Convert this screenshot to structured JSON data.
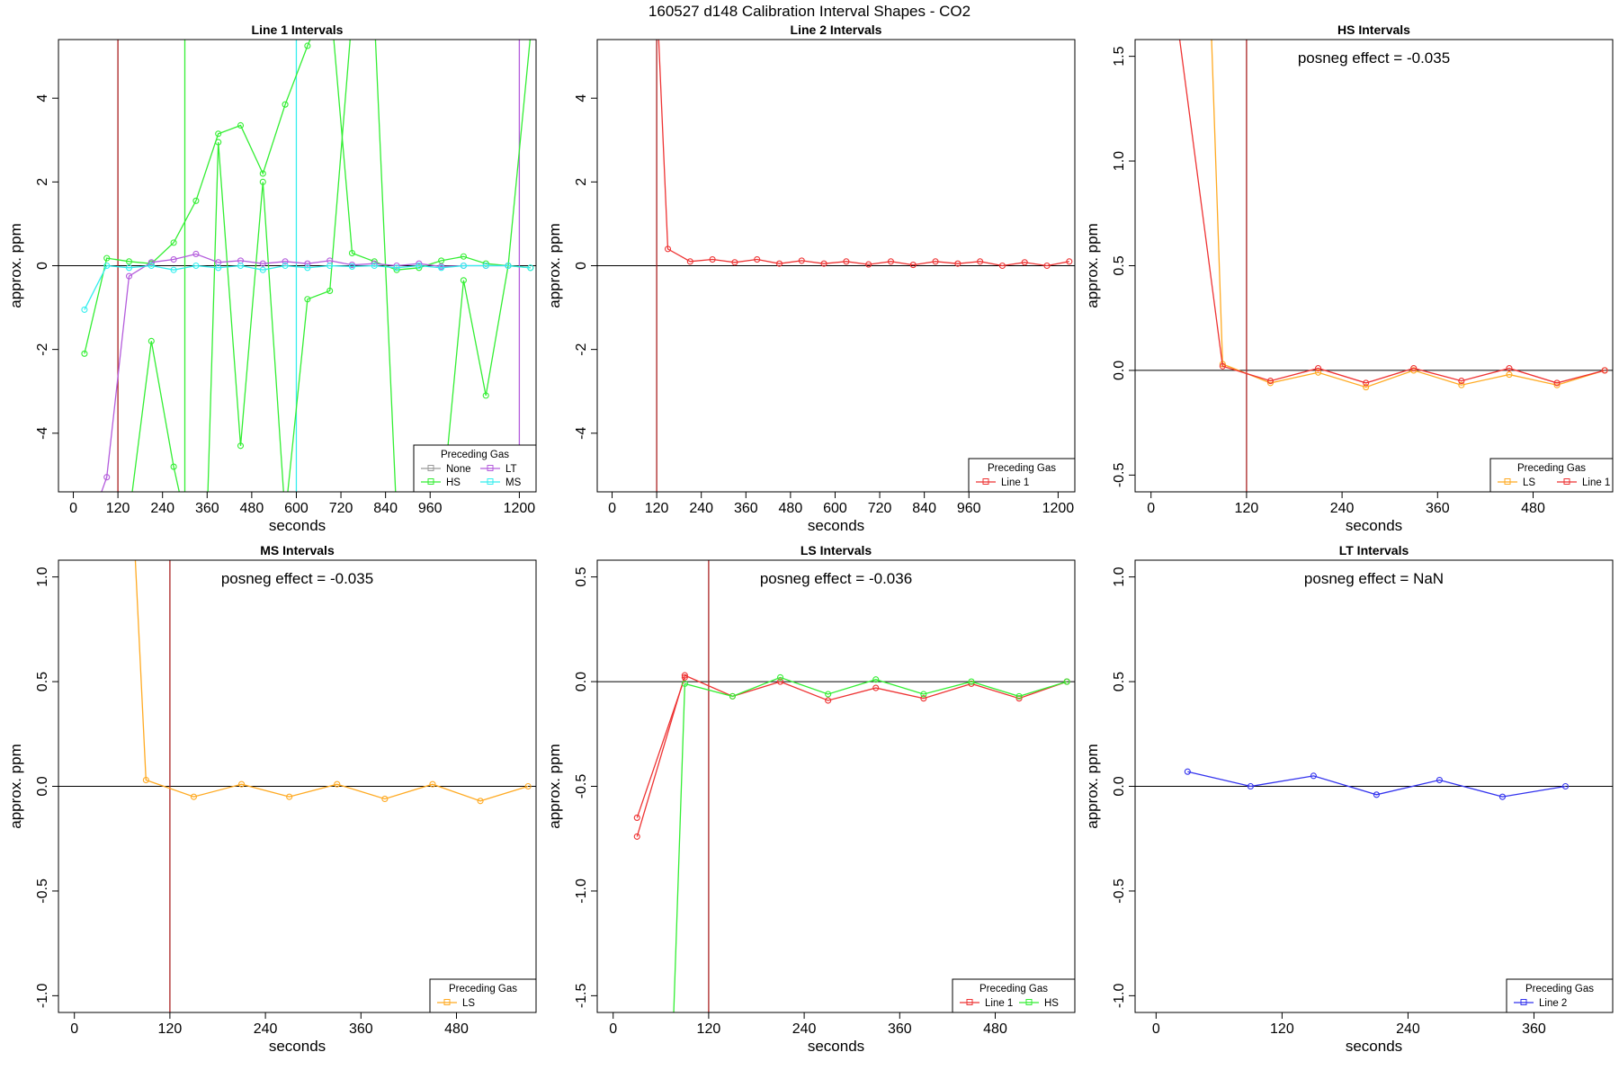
{
  "page": {
    "title": "160527  d148   Calibration Interval Shapes - CO2"
  },
  "colors": {
    "None": "#999999",
    "HS": "#33ee33",
    "LT": "#b45cdc",
    "MS": "#33eeee",
    "Line 1": "#ee3333",
    "Line 2": "#3333ee",
    "LS": "#ffaa22",
    "vline_dark": "#aa2222"
  },
  "chart_data": [
    {
      "type": "line",
      "title": "Line 1 Intervals",
      "xlabel": "seconds",
      "ylabel": "approx. ppm",
      "xlim": [
        -40,
        1245
      ],
      "ylim": [
        -5.4,
        5.4
      ],
      "xticks": [
        0,
        120,
        240,
        360,
        480,
        600,
        720,
        840,
        960,
        1200
      ],
      "yticks": [
        -4,
        -2,
        0,
        2,
        4
      ],
      "annotation": "",
      "legend": {
        "title": "Preceding Gas",
        "ncol": 2,
        "entries": [
          "None",
          "LT",
          "HS",
          "MS"
        ]
      },
      "vlines": [
        {
          "x": 120,
          "color": "#aa2222"
        },
        {
          "x": 300,
          "color": "#33ee33"
        },
        {
          "x": 600,
          "color": "#33eeee"
        },
        {
          "x": 1200,
          "color": "#b45cdc"
        }
      ],
      "series": [
        {
          "name": "HS",
          "color": "#33ee33",
          "lines": [
            {
              "x": [
                30,
                90,
                150,
                210,
                270,
                330,
                390,
                450,
                510,
                570,
                630,
                690,
                750,
                810,
                870,
                930,
                990,
                1050,
                1110,
                1170,
                1230
              ],
              "y": [
                -2.1,
                0.18,
                0.1,
                0.05,
                0.55,
                1.55,
                3.15,
                3.35,
                2.2,
                3.85,
                5.25,
                6.5,
                0.3,
                0.1,
                -0.1,
                -0.05,
                0.12,
                0.22,
                0.05,
                0.0,
                5.5
              ]
            },
            {
              "x": [
                120,
                150,
                210,
                270,
                300
              ],
              "y": [
                -6,
                -6,
                -1.8,
                -4.8,
                -6
              ]
            },
            {
              "x": [
                360,
                390,
                450,
                510,
                570,
                630,
                690,
                750
              ],
              "y": [
                -6,
                2.95,
                -4.3,
                2.0,
                -6,
                -0.8,
                -0.6,
                6
              ]
            },
            {
              "x": [
                810,
                870,
                990,
                1050,
                1110,
                1170,
                1230
              ],
              "y": [
                6,
                -6,
                -6,
                -0.35,
                -3.1,
                0.0,
                -0.05
              ]
            }
          ]
        },
        {
          "name": "LT",
          "color": "#b45cdc",
          "lines": [
            {
              "x": [
                60,
                90,
                150,
                210,
                270,
                330,
                390,
                450,
                510,
                570,
                630,
                690,
                750,
                810,
                870,
                930,
                990,
                1050,
                1110,
                1170
              ],
              "y": [
                -5.8,
                -5.05,
                -0.25,
                0.08,
                0.15,
                0.28,
                0.08,
                0.12,
                0.05,
                0.1,
                0.05,
                0.12,
                0.02,
                0.05,
                0.0,
                0.05,
                -0.02,
                0.0,
                0.0,
                0.0
              ]
            }
          ]
        },
        {
          "name": "MS",
          "color": "#33eeee",
          "lines": [
            {
              "x": [
                30,
                90,
                150,
                210,
                270,
                330,
                390,
                450,
                510,
                570,
                630,
                690,
                750,
                810,
                870,
                930,
                990,
                1050,
                1110,
                1170,
                1230
              ],
              "y": [
                -1.05,
                0.0,
                -0.05,
                0.0,
                -0.1,
                0.0,
                -0.05,
                0.0,
                -0.1,
                0.0,
                -0.05,
                0.0,
                -0.02,
                0.0,
                -0.05,
                0.0,
                -0.05,
                0.0,
                0.0,
                0.0,
                -0.05
              ]
            }
          ]
        },
        {
          "name": "None",
          "color": "#999999",
          "lines": []
        }
      ]
    },
    {
      "type": "line",
      "title": "Line 2 Intervals",
      "xlabel": "seconds",
      "ylabel": "approx. ppm",
      "xlim": [
        -40,
        1245
      ],
      "ylim": [
        -5.4,
        5.4
      ],
      "xticks": [
        0,
        120,
        240,
        360,
        480,
        600,
        720,
        840,
        960,
        1200
      ],
      "yticks": [
        -4,
        -2,
        0,
        2,
        4
      ],
      "annotation": "",
      "legend": {
        "title": "Preceding Gas",
        "ncol": 1,
        "entries": [
          "Line 1"
        ]
      },
      "vlines": [
        {
          "x": 120,
          "color": "#aa2222"
        }
      ],
      "series": [
        {
          "name": "Line 1",
          "color": "#ee3333",
          "lines": [
            {
              "x": [
                120,
                150,
                210,
                270,
                330,
                390,
                450,
                510,
                570,
                630,
                690,
                750,
                810,
                870,
                930,
                990,
                1050,
                1110,
                1170,
                1230
              ],
              "y": [
                6.5,
                0.4,
                0.1,
                0.15,
                0.08,
                0.15,
                0.05,
                0.12,
                0.05,
                0.1,
                0.03,
                0.1,
                0.02,
                0.1,
                0.05,
                0.1,
                0.0,
                0.08,
                0.0,
                0.1
              ]
            }
          ]
        }
      ]
    },
    {
      "type": "line",
      "title": "HS Intervals",
      "xlabel": "seconds",
      "ylabel": "approx. ppm",
      "xlim": [
        -20,
        580
      ],
      "ylim": [
        -0.58,
        1.58
      ],
      "xticks": [
        0,
        120,
        240,
        360,
        480
      ],
      "yticks": [
        -0.5,
        0.0,
        0.5,
        1.0,
        1.5
      ],
      "annotation": "posneg effect = -0.035",
      "legend": {
        "title": "Preceding Gas",
        "ncol": 2,
        "entries": [
          "LS",
          "Line 1"
        ]
      },
      "vlines": [
        {
          "x": 120,
          "color": "#aa2222"
        }
      ],
      "series": [
        {
          "name": "LS",
          "color": "#ffaa22",
          "lines": [
            {
              "x": [
                75,
                90,
                150,
                210,
                270,
                330,
                390,
                450,
                510,
                570
              ],
              "y": [
                1.7,
                0.03,
                -0.06,
                -0.01,
                -0.08,
                0.0,
                -0.07,
                -0.02,
                -0.07,
                0.0
              ]
            }
          ]
        },
        {
          "name": "Line 1",
          "color": "#ee3333",
          "lines": [
            {
              "x": [
                25,
                90,
                150,
                210,
                270,
                330,
                390,
                450,
                510,
                570
              ],
              "y": [
                1.9,
                0.02,
                -0.05,
                0.01,
                -0.06,
                0.01,
                -0.05,
                0.01,
                -0.06,
                0.0
              ]
            }
          ]
        }
      ]
    },
    {
      "type": "line",
      "title": "MS Intervals",
      "xlabel": "seconds",
      "ylabel": "approx. ppm",
      "xlim": [
        -20,
        580
      ],
      "ylim": [
        -1.08,
        1.08
      ],
      "xticks": [
        0,
        120,
        240,
        360,
        480
      ],
      "yticks": [
        -1.0,
        -0.5,
        0.0,
        0.5,
        1.0
      ],
      "annotation": "posneg effect = -0.035",
      "legend": {
        "title": "Preceding Gas",
        "ncol": 1,
        "entries": [
          "LS"
        ]
      },
      "vlines": [
        {
          "x": 120,
          "color": "#aa2222"
        }
      ],
      "series": [
        {
          "name": "LS",
          "color": "#ffaa22",
          "lines": [
            {
              "x": [
                75,
                90,
                150,
                210,
                270,
                330,
                390,
                450,
                510,
                570
              ],
              "y": [
                1.2,
                0.03,
                -0.05,
                0.01,
                -0.05,
                0.01,
                -0.06,
                0.01,
                -0.07,
                0.0
              ]
            }
          ]
        }
      ]
    },
    {
      "type": "line",
      "title": "LS Intervals",
      "xlabel": "seconds",
      "ylabel": "approx. ppm",
      "xlim": [
        -20,
        580
      ],
      "ylim": [
        -1.58,
        0.58
      ],
      "xticks": [
        0,
        120,
        240,
        360,
        480
      ],
      "yticks": [
        -1.5,
        -1.0,
        -0.5,
        0.0,
        0.5
      ],
      "annotation": "posneg effect = -0.036",
      "legend": {
        "title": "Preceding Gas",
        "ncol": 2,
        "entries": [
          "Line 1",
          "HS"
        ]
      },
      "vlines": [
        {
          "x": 120,
          "color": "#aa2222"
        }
      ],
      "series": [
        {
          "name": "Line 1",
          "color": "#ee3333",
          "lines": [
            {
              "x": [
                30,
                90,
                150,
                210,
                270,
                330,
                390,
                450,
                510,
                570
              ],
              "y": [
                -0.74,
                0.03,
                -0.07,
                0.0,
                -0.09,
                -0.03,
                -0.08,
                -0.01,
                -0.08,
                0.0
              ]
            },
            {
              "x": [
                30,
                90
              ],
              "y": [
                -0.65,
                0.02
              ]
            }
          ]
        },
        {
          "name": "HS",
          "color": "#33ee33",
          "lines": [
            {
              "x": [
                75,
                90,
                150,
                210,
                270,
                330,
                390,
                450,
                510,
                570
              ],
              "y": [
                -1.7,
                -0.01,
                -0.07,
                0.02,
                -0.06,
                0.01,
                -0.06,
                0.0,
                -0.07,
                0.0
              ]
            }
          ]
        }
      ]
    },
    {
      "type": "line",
      "title": "LT Intervals",
      "xlabel": "seconds",
      "ylabel": "approx. ppm",
      "xlim": [
        -20,
        435
      ],
      "ylim": [
        -1.08,
        1.08
      ],
      "xticks": [
        0,
        120,
        240,
        360
      ],
      "yticks": [
        -1.0,
        -0.5,
        0.0,
        0.5,
        1.0
      ],
      "annotation": "posneg effect = NaN",
      "legend": {
        "title": "Preceding Gas",
        "ncol": 1,
        "entries": [
          "Line 2"
        ]
      },
      "vlines": [],
      "series": [
        {
          "name": "Line 2",
          "color": "#3333ee",
          "lines": [
            {
              "x": [
                30,
                90,
                150,
                210,
                270,
                330,
                390
              ],
              "y": [
                0.07,
                0.0,
                0.05,
                -0.04,
                0.03,
                -0.05,
                0.0
              ]
            }
          ]
        }
      ]
    }
  ]
}
